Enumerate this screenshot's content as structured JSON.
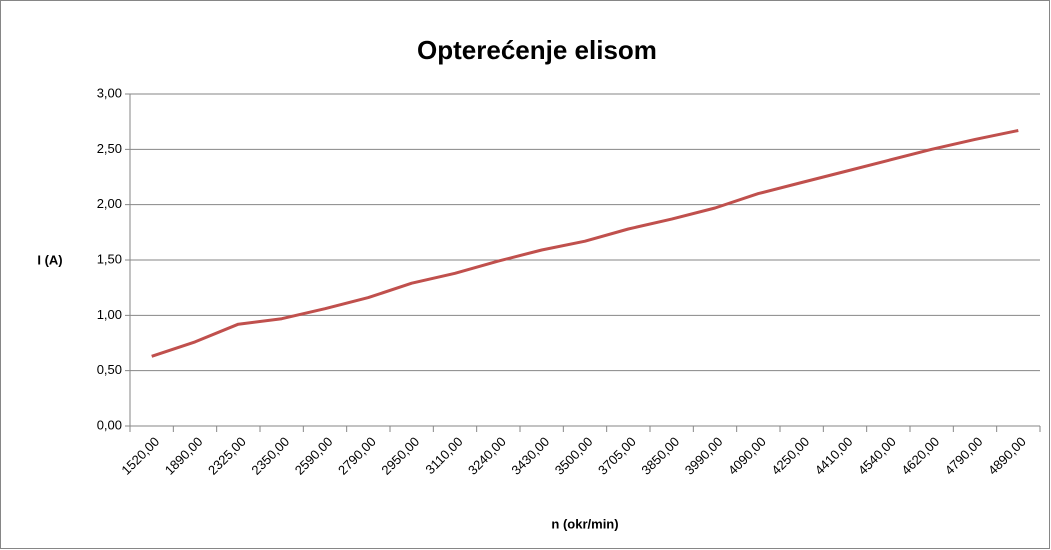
{
  "chart_data": {
    "type": "line",
    "title": "Opterećenje elisom",
    "x_label": "n (okr/min)",
    "y_label": "I (A)",
    "categories": [
      "1520,00",
      "1890,00",
      "2325,00",
      "2350,00",
      "2590,00",
      "2790,00",
      "2950,00",
      "3110,00",
      "3240,00",
      "3430,00",
      "3500,00",
      "3705,00",
      "3850,00",
      "3990,00",
      "4090,00",
      "4250,00",
      "4410,00",
      "4540,00",
      "4620,00",
      "4790,00",
      "4890,00"
    ],
    "values": [
      0.63,
      0.76,
      0.92,
      0.97,
      1.06,
      1.16,
      1.29,
      1.38,
      1.49,
      1.59,
      1.67,
      1.78,
      1.87,
      1.97,
      2.1,
      2.2,
      2.3,
      2.4,
      2.5,
      2.59,
      2.67
    ],
    "color": "#c0504d",
    "ylim": [
      0,
      3
    ],
    "yticks": [
      {
        "value": 0,
        "label": "0,00"
      },
      {
        "value": 0.5,
        "label": "0,50"
      },
      {
        "value": 1,
        "label": "1,00"
      },
      {
        "value": 1.5,
        "label": "1,50"
      },
      {
        "value": 2,
        "label": "2,00"
      },
      {
        "value": 2.5,
        "label": "2,50"
      },
      {
        "value": 3,
        "label": "3,00"
      }
    ],
    "grid": true
  }
}
